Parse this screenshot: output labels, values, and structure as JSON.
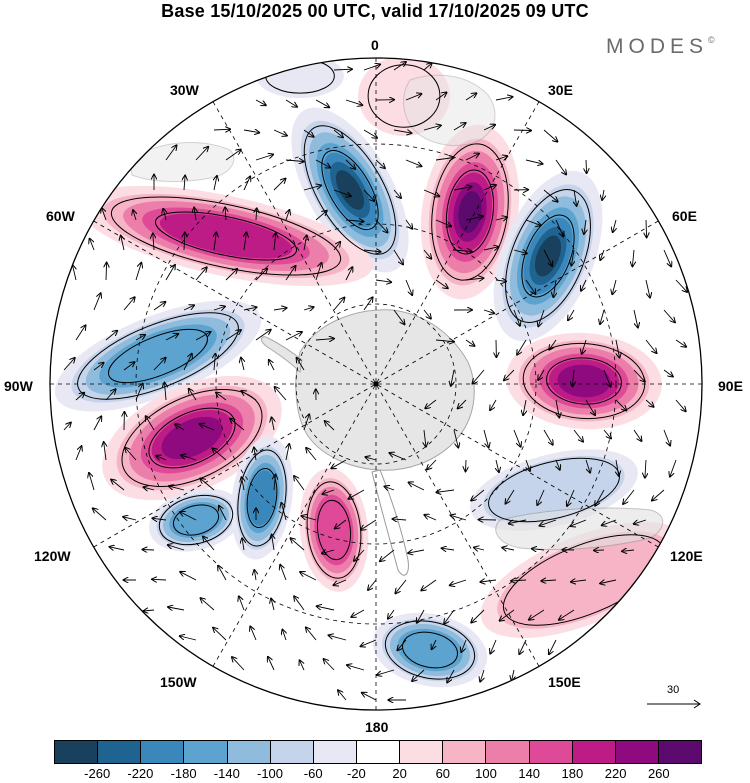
{
  "title": "Base 15/10/2025 00 UTC, valid 17/10/2025 09 UTC",
  "brand": "MODES",
  "brand_symbol": "©",
  "longitude_labels": {
    "n0": "0",
    "n30e": "30E",
    "n60e": "60E",
    "n90e": "90E",
    "n120e": "120E",
    "n150e": "150E",
    "n180": "180",
    "n150w": "150W",
    "n120w": "120W",
    "n90w": "90W",
    "n60w": "60W",
    "n30w": "30W"
  },
  "wind_reference": "30",
  "colorbar": {
    "colors": [
      "#19405c",
      "#1f6390",
      "#3a87bb",
      "#5ca3cf",
      "#8fbbdc",
      "#c5d4ea",
      "#e8e8f4",
      "#ffffff",
      "#fbdde3",
      "#f6b4c6",
      "#ec7eaa",
      "#de4a98",
      "#bd1c87",
      "#8e0a7e",
      "#5d0a6e"
    ],
    "ticks": [
      "-260",
      "-220",
      "-180",
      "-140",
      "-100",
      "-60",
      "-20",
      "20",
      "60",
      "100",
      "140",
      "180",
      "220",
      "260"
    ]
  },
  "anomaly_centers": [
    {
      "name": "neg-30w",
      "value": -260
    },
    {
      "name": "pos-30e",
      "value": 260
    },
    {
      "name": "neg-50e",
      "value": -260
    },
    {
      "name": "pos-60w",
      "value": 180
    },
    {
      "name": "neg-80w",
      "value": -140
    },
    {
      "name": "pos-95e",
      "value": 220
    },
    {
      "name": "pos-100w",
      "value": 220
    },
    {
      "name": "neg-120w-a",
      "value": -140
    },
    {
      "name": "neg-120w-b",
      "value": -180
    },
    {
      "name": "pos-150w",
      "value": 140
    },
    {
      "name": "neg-165e",
      "value": -140
    },
    {
      "name": "neg-120e",
      "value": -60
    },
    {
      "name": "pos-130e",
      "value": 60
    },
    {
      "name": "pos-5e",
      "value": 20
    },
    {
      "name": "neg-10w",
      "value": -20
    }
  ],
  "colors": {
    "land": "#e2e2e2",
    "coast": "#9a9a9a",
    "grid": "#000000",
    "arrows": "#000000"
  }
}
